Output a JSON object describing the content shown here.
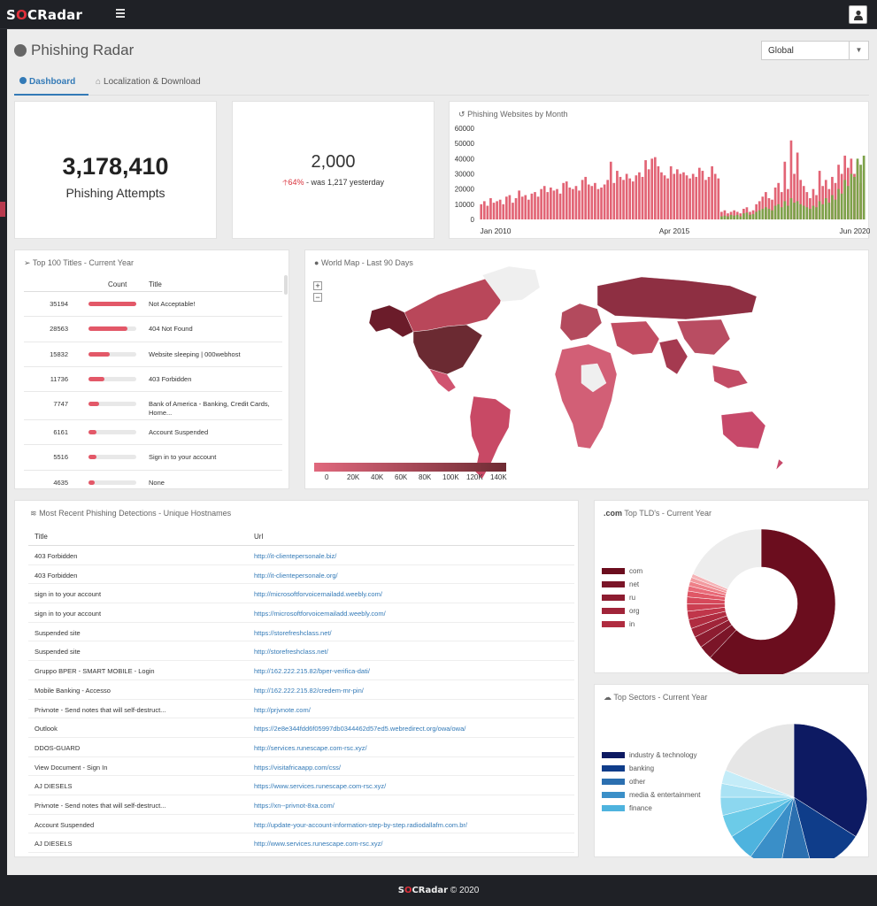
{
  "app": {
    "logo_pre": "S",
    "logo_o": "O",
    "logo_post": "CRadar"
  },
  "page": {
    "title": "Phishing Radar",
    "region_select": "Global"
  },
  "tabs": [
    {
      "label": "Dashboard"
    },
    {
      "label": "Localization & Download"
    }
  ],
  "kpi": {
    "attempts": "3,178,410",
    "attempts_label": "Phishing Attempts",
    "today": "2,000",
    "change_pct": "64%",
    "change_text": " - was 1,217 yesterday"
  },
  "monthly": {
    "title": "Phishing Websites by Month",
    "yticks": [
      "60000",
      "50000",
      "40000",
      "30000",
      "20000",
      "10000",
      "0"
    ],
    "xticks": [
      "Jan 2010",
      "Apr 2015",
      "Jun 2020"
    ]
  },
  "chart_data": [
    {
      "type": "bar",
      "title": "Phishing Websites by Month",
      "xlabel": "",
      "ylabel": "",
      "ylim": [
        0,
        60000
      ],
      "x_range": [
        "Jan 2010",
        "Jun 2020"
      ],
      "series": [
        {
          "values": [
            10000,
            12000,
            9000,
            14000,
            11000,
            12000,
            13000,
            10000,
            15000,
            16000,
            11000,
            14000,
            19000,
            15000,
            16000,
            13000,
            17000,
            18000,
            15000,
            20000,
            22000,
            18000,
            21000,
            19000,
            20000,
            17000,
            24000,
            25000,
            21000,
            20000,
            22000,
            19000,
            26000,
            28000,
            23000,
            22000,
            24000,
            20000,
            21000,
            23000,
            26000,
            38000,
            24000,
            32000,
            28000,
            26000,
            30000,
            27000,
            25000,
            29000,
            31000,
            28000,
            39000,
            33000,
            40000,
            41000,
            35000,
            31000,
            29000,
            27000,
            35000,
            30000,
            33000,
            30000,
            31000,
            29000,
            27000,
            30000,
            28000,
            34000,
            32000,
            26000,
            28000,
            35000,
            30000,
            27000,
            5000,
            6000,
            4000,
            5000,
            6000,
            5000,
            4000,
            7000,
            8000,
            5000,
            6000,
            10000,
            12000,
            15000,
            18000,
            14000,
            13000,
            21000,
            24000,
            18000,
            38000,
            20000,
            52000,
            30000,
            44000,
            26000,
            22000,
            18000,
            14000,
            20000,
            16000,
            32000,
            22000,
            26000,
            20000,
            28000,
            24000,
            36000,
            30000,
            42000,
            34000,
            40000,
            30000,
            38000,
            24000,
            32000
          ]
        }
      ],
      "series2_note_values": [
        0,
        0,
        0,
        0,
        0,
        0,
        0,
        0,
        0,
        0,
        0,
        0,
        0,
        0,
        0,
        0,
        0,
        0,
        0,
        0,
        0,
        0,
        0,
        0,
        0,
        0,
        0,
        0,
        0,
        0,
        0,
        0,
        0,
        0,
        0,
        0,
        0,
        0,
        0,
        0,
        0,
        0,
        0,
        0,
        0,
        0,
        0,
        0,
        0,
        0,
        0,
        0,
        0,
        0,
        0,
        0,
        0,
        0,
        0,
        0,
        0,
        0,
        0,
        0,
        0,
        0,
        0,
        0,
        0,
        0,
        0,
        0,
        0,
        0,
        0,
        0,
        2000,
        2500,
        2000,
        3000,
        2500,
        3000,
        2000,
        4000,
        4500,
        3000,
        3500,
        5000,
        6000,
        7000,
        8000,
        7000,
        6000,
        9000,
        10000,
        8000,
        12000,
        9000,
        14000,
        11000,
        12000,
        10000,
        9000,
        8000,
        7000,
        9000,
        8000,
        12000,
        10000,
        14000,
        11000,
        16000,
        13000,
        20000,
        17000,
        26000,
        22000,
        30000,
        28000,
        40000,
        36000,
        42000
      ]
    },
    {
      "type": "pie",
      "title": "Top TLD's - Current Year",
      "categories": [
        "com",
        "net",
        "ru",
        "org",
        "in"
      ],
      "values": [
        62,
        3,
        2.5,
        2,
        2
      ]
    },
    {
      "type": "pie",
      "title": "Top Sectors - Current Year",
      "categories": [
        "industry & technology",
        "banking",
        "other",
        "media & entertainment",
        "finance"
      ],
      "values": [
        34,
        12,
        7,
        7,
        6
      ]
    }
  ],
  "top100": {
    "title": "Top 100 Titles - Current Year",
    "col_count": "Count",
    "col_title": "Title",
    "rows": [
      {
        "count": "35194",
        "pct": 100,
        "title": "Not Acceptable!"
      },
      {
        "count": "28563",
        "pct": 81,
        "title": "404 Not Found"
      },
      {
        "count": "15832",
        "pct": 45,
        "title": "Website sleeping | 000webhost"
      },
      {
        "count": "11736",
        "pct": 33,
        "title": "403 Forbidden"
      },
      {
        "count": "7747",
        "pct": 22,
        "title": "Bank of America - Banking, Credit Cards, Home..."
      },
      {
        "count": "6161",
        "pct": 17,
        "title": "Account Suspended"
      },
      {
        "count": "5516",
        "pct": 16,
        "title": "Sign in to your account"
      },
      {
        "count": "4635",
        "pct": 13,
        "title": "None"
      }
    ]
  },
  "worldmap": {
    "title": "World Map - Last 90 Days",
    "zoom_in": "+",
    "zoom_out": "−",
    "scale": [
      "0",
      "20K",
      "40K",
      "60K",
      "80K",
      "100K",
      "120K",
      "140K"
    ]
  },
  "recent": {
    "title": "Most Recent Phishing Detections - Unique Hostnames",
    "col_title": "Title",
    "col_url": "Url",
    "rows": [
      {
        "title": "403 Forbidden",
        "url": "http://it-clientepersonale.biz/"
      },
      {
        "title": "403 Forbidden",
        "url": "http://it-clientepersonale.org/"
      },
      {
        "title": "sign in to your account",
        "url": "http://microsoftforvoicemailadd.weebly.com/"
      },
      {
        "title": "sign in to your account",
        "url": "https://microsoftforvoicemailadd.weebly.com/"
      },
      {
        "title": "Suspended site",
        "url": "https://storefreshclass.net/"
      },
      {
        "title": "Suspended site",
        "url": "http://storefreshclass.net/"
      },
      {
        "title": "Gruppo BPER - SMART MOBILE - Login",
        "url": "http://162.222.215.82/bper-verifica-dati/"
      },
      {
        "title": "Mobile Banking - Accesso",
        "url": "http://162.222.215.82/credem-mr-pin/"
      },
      {
        "title": "Privnote - Send notes that will self-destruct...",
        "url": "http://prjvnote.com/"
      },
      {
        "title": "Outlook",
        "url": "https://2e8e344fdd6f05997db0344462d57ed5.webredirect.org/owa/owa/"
      },
      {
        "title": "DDOS-GUARD",
        "url": "http://services.runescape.com-rsc.xyz/"
      },
      {
        "title": "View Document - Sign In",
        "url": "https://visitafricaapp.com/css/"
      },
      {
        "title": "AJ DIESELS",
        "url": "https://www.services.runescape.com-rsc.xyz/"
      },
      {
        "title": "Privnote - Send notes that will self-destruct...",
        "url": "https://xn--privnot-8xa.com/"
      },
      {
        "title": "Account Suspended",
        "url": "http://update-your-account-information-step-by-step.radiodallafm.com.br/"
      },
      {
        "title": "AJ DIESELS",
        "url": "http://www.services.runescape.com-rsc.xyz/"
      }
    ]
  },
  "tld": {
    "title_pre": ".com",
    "title": " Top TLD's - Current Year",
    "legend": [
      {
        "label": "com",
        "color": "#6b0d1e"
      },
      {
        "label": "net",
        "color": "#7b1528"
      },
      {
        "label": "ru",
        "color": "#8d1c30"
      },
      {
        "label": "org",
        "color": "#a02439"
      },
      {
        "label": "in",
        "color": "#b02c40"
      }
    ]
  },
  "sectors": {
    "title": "Top Sectors - Current Year",
    "legend": [
      {
        "label": "industry & technology",
        "color": "#0d1a62"
      },
      {
        "label": "banking",
        "color": "#0f3d8a"
      },
      {
        "label": "other",
        "color": "#2b6fb0"
      },
      {
        "label": "media & entertainment",
        "color": "#3a8fc8"
      },
      {
        "label": "finance",
        "color": "#4eb3de"
      }
    ]
  },
  "footer": {
    "logo_pre": "S",
    "logo_o": "O",
    "logo_post": "CRadar",
    "copy": " © 2020"
  }
}
